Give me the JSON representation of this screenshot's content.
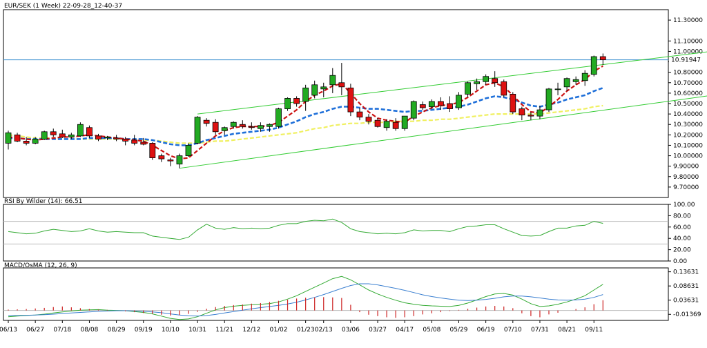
{
  "title": "EUR/SEK (1 Week) 22-09-28_12-40-37",
  "colors": {
    "bull": "#22aa22",
    "bear": "#dd1111",
    "wick": "#000000",
    "ma_fast": "#cc1111",
    "ma_mid": "#1e6fd9",
    "ma_slow": "#f0f060",
    "channel": "#33cc33",
    "price_line": "#3a8fd0",
    "rsi": "#33aa33",
    "macd_line": "#33aa33",
    "signal_line": "#3a7fd0",
    "osma": "#cc2222"
  },
  "chart_data": [
    {
      "type": "candlestick",
      "pane": "price",
      "title": "EUR/SEK (1 Week) 22-09-28_12-40-37",
      "ylim": [
        9.6,
        11.4
      ],
      "yticks": [
        "11.30000",
        "11.10000",
        "11.00000",
        "10.90000",
        "10.80000",
        "10.70000",
        "10.60000",
        "10.50000",
        "10.40000",
        "10.30000",
        "10.20000",
        "10.10000",
        "10.00000",
        "9.90000",
        "9.80000",
        "9.70000"
      ],
      "current_price": 10.91947,
      "current_price_label": "10.91947",
      "x_labels": [
        "06/13",
        "06/27",
        "07/18",
        "08/08",
        "08/29",
        "09/19",
        "10/10",
        "10/31",
        "11/21",
        "12/12",
        "01/02",
        "01/23",
        "02/13",
        "03/06",
        "03/27",
        "04/17",
        "05/08",
        "05/29",
        "06/19",
        "07/10",
        "07/31",
        "08/21",
        "09/11"
      ],
      "ohlc": [
        [
          10.12,
          10.24,
          10.06,
          10.22
        ],
        [
          10.2,
          10.22,
          10.13,
          10.14
        ],
        [
          10.14,
          10.18,
          10.1,
          10.12
        ],
        [
          10.12,
          10.18,
          10.11,
          10.16
        ],
        [
          10.16,
          10.24,
          10.15,
          10.23
        ],
        [
          10.23,
          10.26,
          10.18,
          10.2
        ],
        [
          10.21,
          10.25,
          10.17,
          10.18
        ],
        [
          10.18,
          10.22,
          10.16,
          10.2
        ],
        [
          10.19,
          10.32,
          10.18,
          10.3
        ],
        [
          10.27,
          10.29,
          10.17,
          10.19
        ],
        [
          10.19,
          10.21,
          10.14,
          10.16
        ],
        [
          10.17,
          10.19,
          10.15,
          10.18
        ],
        [
          10.17,
          10.2,
          10.14,
          10.16
        ],
        [
          10.16,
          10.18,
          10.1,
          10.14
        ],
        [
          10.15,
          10.2,
          10.1,
          10.12
        ],
        [
          10.13,
          10.17,
          10.1,
          10.11
        ],
        [
          10.12,
          10.13,
          9.96,
          9.98
        ],
        [
          10.0,
          10.02,
          9.94,
          9.97
        ],
        [
          9.96,
          9.98,
          9.9,
          9.95
        ],
        [
          9.92,
          10.02,
          9.88,
          10.0
        ],
        [
          10.0,
          10.12,
          9.99,
          10.1
        ],
        [
          10.12,
          10.38,
          10.11,
          10.37
        ],
        [
          10.34,
          10.36,
          10.28,
          10.31
        ],
        [
          10.32,
          10.35,
          10.2,
          10.23
        ],
        [
          10.24,
          10.28,
          10.2,
          10.27
        ],
        [
          10.28,
          10.33,
          10.26,
          10.32
        ],
        [
          10.3,
          10.34,
          10.26,
          10.28
        ],
        [
          10.28,
          10.32,
          10.25,
          10.27
        ],
        [
          10.26,
          10.32,
          10.23,
          10.29
        ],
        [
          10.28,
          10.31,
          10.23,
          10.3
        ],
        [
          10.28,
          10.46,
          10.26,
          10.45
        ],
        [
          10.45,
          10.56,
          10.43,
          10.55
        ],
        [
          10.55,
          10.57,
          10.47,
          10.5
        ],
        [
          10.52,
          10.68,
          10.43,
          10.65
        ],
        [
          10.58,
          10.72,
          10.55,
          10.68
        ],
        [
          10.64,
          10.7,
          10.56,
          10.66
        ],
        [
          10.68,
          10.84,
          10.6,
          10.77
        ],
        [
          10.7,
          10.89,
          10.58,
          10.66
        ],
        [
          10.65,
          10.69,
          10.38,
          10.42
        ],
        [
          10.42,
          10.46,
          10.34,
          10.37
        ],
        [
          10.37,
          10.4,
          10.3,
          10.33
        ],
        [
          10.34,
          10.36,
          10.27,
          10.28
        ],
        [
          10.27,
          10.35,
          10.24,
          10.33
        ],
        [
          10.32,
          10.36,
          10.24,
          10.26
        ],
        [
          10.26,
          10.37,
          10.24,
          10.38
        ],
        [
          10.36,
          10.53,
          10.34,
          10.52
        ],
        [
          10.49,
          10.52,
          10.44,
          10.46
        ],
        [
          10.47,
          10.54,
          10.45,
          10.52
        ],
        [
          10.52,
          10.56,
          10.44,
          10.48
        ],
        [
          10.5,
          10.57,
          10.42,
          10.45
        ],
        [
          10.46,
          10.61,
          10.44,
          10.58
        ],
        [
          10.59,
          10.71,
          10.56,
          10.7
        ],
        [
          10.69,
          10.74,
          10.63,
          10.71
        ],
        [
          10.71,
          10.78,
          10.68,
          10.76
        ],
        [
          10.74,
          10.81,
          10.66,
          10.7
        ],
        [
          10.71,
          10.73,
          10.56,
          10.58
        ],
        [
          10.59,
          10.61,
          10.4,
          10.42
        ],
        [
          10.45,
          10.47,
          10.34,
          10.39
        ],
        [
          10.39,
          10.42,
          10.34,
          10.38
        ],
        [
          10.38,
          10.48,
          10.35,
          10.44
        ],
        [
          10.44,
          10.65,
          10.42,
          10.64
        ],
        [
          10.64,
          10.7,
          10.58,
          10.64
        ],
        [
          10.66,
          10.75,
          10.62,
          10.74
        ],
        [
          10.71,
          10.76,
          10.68,
          10.73
        ],
        [
          10.72,
          10.82,
          10.67,
          10.79
        ],
        [
          10.78,
          10.96,
          10.76,
          10.95
        ],
        [
          10.95,
          10.98,
          10.87,
          10.92
        ]
      ],
      "series": [
        {
          "name": "",
          "kind": "line",
          "color_key": "ma_fast",
          "values": [
            10.18,
            10.17,
            10.16,
            10.15,
            10.16,
            10.17,
            10.18,
            10.18,
            10.19,
            10.2,
            10.19,
            10.18,
            10.17,
            10.16,
            10.15,
            10.14,
            10.1,
            10.05,
            10.0,
            9.97,
            9.98,
            10.05,
            10.12,
            10.19,
            10.24,
            10.27,
            10.28,
            10.28,
            10.28,
            10.29,
            10.32,
            10.38,
            10.44,
            10.52,
            10.58,
            10.62,
            10.67,
            10.69,
            10.6,
            10.5,
            10.42,
            10.36,
            10.34,
            10.33,
            10.32,
            10.38,
            10.42,
            10.46,
            10.48,
            10.49,
            10.51,
            10.56,
            10.62,
            10.68,
            10.7,
            10.66,
            10.58,
            10.49,
            10.42,
            10.41,
            10.47,
            10.54,
            10.62,
            10.68,
            10.73,
            10.81,
            10.86
          ]
        },
        {
          "name": "",
          "kind": "line",
          "color_key": "ma_mid",
          "values": [
            10.17,
            10.17,
            10.16,
            10.16,
            10.16,
            10.16,
            10.16,
            10.16,
            10.16,
            10.17,
            10.17,
            10.17,
            10.17,
            10.16,
            10.16,
            10.16,
            10.15,
            10.13,
            10.11,
            10.1,
            10.1,
            10.12,
            10.15,
            10.17,
            10.19,
            10.21,
            10.22,
            10.23,
            10.24,
            10.25,
            10.27,
            10.3,
            10.33,
            10.37,
            10.4,
            10.42,
            10.45,
            10.47,
            10.47,
            10.46,
            10.45,
            10.45,
            10.44,
            10.43,
            10.42,
            10.43,
            10.43,
            10.44,
            10.45,
            10.46,
            10.47,
            10.49,
            10.52,
            10.55,
            10.57,
            10.56,
            10.54,
            10.51,
            10.48,
            10.47,
            10.49,
            10.51,
            10.54,
            10.56,
            10.58,
            10.62,
            10.65
          ]
        },
        {
          "name": "",
          "kind": "line",
          "color_key": "ma_slow",
          "values": [
            10.2,
            10.19,
            10.18,
            10.17,
            10.17,
            10.17,
            10.16,
            10.16,
            10.16,
            10.16,
            10.16,
            10.16,
            10.16,
            10.16,
            10.16,
            10.15,
            10.15,
            10.14,
            10.13,
            10.12,
            10.12,
            10.12,
            10.13,
            10.14,
            10.14,
            10.15,
            10.16,
            10.17,
            10.18,
            10.19,
            10.2,
            10.21,
            10.22,
            10.24,
            10.26,
            10.27,
            10.29,
            10.3,
            10.31,
            10.31,
            10.32,
            10.32,
            10.32,
            10.33,
            10.33,
            10.33,
            10.34,
            10.34,
            10.35,
            10.35,
            10.36,
            10.37,
            10.38,
            10.39,
            10.4,
            10.4,
            10.4,
            10.4,
            10.4,
            10.4,
            10.41,
            10.42,
            10.43,
            10.44,
            10.45,
            10.47,
            10.48
          ]
        }
      ],
      "channels": [
        {
          "from": [
            19,
            9.88
          ],
          "to": [
            79,
            10.59
          ]
        },
        {
          "from": [
            21,
            10.4
          ],
          "to": [
            78,
            11.0
          ]
        }
      ]
    },
    {
      "type": "line",
      "pane": "rsi",
      "title": "RSI By Wilder (14): 66.51",
      "ylim": [
        0,
        100
      ],
      "yticks": [
        "100.00",
        "80.00",
        "60.00",
        "40.00",
        "20.00",
        "0.00"
      ],
      "levels": [
        70,
        30
      ],
      "series": [
        {
          "name": "",
          "color_key": "rsi",
          "values": [
            52,
            50,
            48,
            49,
            53,
            56,
            54,
            52,
            53,
            57,
            53,
            51,
            52,
            51,
            50,
            50,
            44,
            42,
            40,
            38,
            42,
            55,
            65,
            58,
            56,
            59,
            57,
            58,
            57,
            58,
            63,
            66,
            66,
            70,
            72,
            71,
            74,
            68,
            57,
            52,
            50,
            48,
            49,
            48,
            50,
            55,
            53,
            54,
            54,
            52,
            57,
            61,
            62,
            64,
            64,
            57,
            51,
            45,
            44,
            45,
            52,
            58,
            58,
            62,
            63,
            70,
            66.51
          ]
        }
      ]
    },
    {
      "type": "line",
      "pane": "macd",
      "title": "MACD/OsMA (12, 26, 9)",
      "ylim": [
        -0.035,
        0.15
      ],
      "yticks": [
        "0.13631",
        "0.08631",
        "0.03631",
        "-0.01369"
      ],
      "series": [
        {
          "name": "",
          "kind": "line",
          "color_key": "macd_line",
          "values": [
            -0.022,
            -0.02,
            -0.018,
            -0.016,
            -0.013,
            -0.009,
            -0.005,
            -0.002,
            0.001,
            0.002,
            0.003,
            0.001,
            0.0,
            -0.001,
            -0.004,
            -0.007,
            -0.012,
            -0.02,
            -0.028,
            -0.032,
            -0.03,
            -0.022,
            -0.01,
            0.002,
            0.01,
            0.015,
            0.018,
            0.02,
            0.022,
            0.024,
            0.03,
            0.04,
            0.052,
            0.067,
            0.082,
            0.097,
            0.112,
            0.12,
            0.108,
            0.09,
            0.072,
            0.058,
            0.046,
            0.036,
            0.027,
            0.022,
            0.018,
            0.016,
            0.015,
            0.014,
            0.018,
            0.026,
            0.037,
            0.049,
            0.058,
            0.06,
            0.054,
            0.04,
            0.024,
            0.014,
            0.016,
            0.022,
            0.03,
            0.04,
            0.052,
            0.072,
            0.092
          ]
        },
        {
          "name": "",
          "kind": "line",
          "color_key": "signal_line",
          "values": [
            -0.018,
            -0.018,
            -0.017,
            -0.016,
            -0.015,
            -0.013,
            -0.011,
            -0.009,
            -0.007,
            -0.005,
            -0.003,
            -0.002,
            -0.001,
            -0.001,
            -0.002,
            -0.003,
            -0.005,
            -0.008,
            -0.012,
            -0.016,
            -0.019,
            -0.02,
            -0.018,
            -0.014,
            -0.009,
            -0.004,
            0.001,
            0.006,
            0.01,
            0.014,
            0.018,
            0.023,
            0.029,
            0.037,
            0.046,
            0.056,
            0.067,
            0.078,
            0.088,
            0.094,
            0.094,
            0.09,
            0.084,
            0.078,
            0.071,
            0.063,
            0.055,
            0.049,
            0.044,
            0.04,
            0.036,
            0.035,
            0.036,
            0.039,
            0.043,
            0.048,
            0.051,
            0.051,
            0.048,
            0.044,
            0.04,
            0.037,
            0.036,
            0.037,
            0.04,
            0.046,
            0.056
          ]
        },
        {
          "name": "",
          "kind": "bar",
          "color_key": "osma",
          "values": [
            0.003,
            0.004,
            0.005,
            0.007,
            0.009,
            0.012,
            0.014,
            0.011,
            0.008,
            0.005,
            0.003,
            0.002,
            0.0,
            -0.003,
            -0.006,
            -0.009,
            -0.012,
            -0.015,
            -0.018,
            -0.016,
            -0.012,
            -0.005,
            0.006,
            0.012,
            0.016,
            0.019,
            0.021,
            0.024,
            0.026,
            0.03,
            0.034,
            0.038,
            0.042,
            0.045,
            0.046,
            0.047,
            0.046,
            0.044,
            0.02,
            -0.006,
            -0.015,
            -0.02,
            -0.024,
            -0.026,
            -0.024,
            -0.02,
            -0.014,
            -0.01,
            -0.006,
            -0.002,
            0.002,
            0.006,
            0.01,
            0.014,
            0.016,
            0.014,
            0.008,
            -0.01,
            -0.02,
            -0.024,
            -0.014,
            -0.008,
            0.0,
            0.005,
            0.011,
            0.022,
            0.036
          ]
        }
      ]
    }
  ]
}
